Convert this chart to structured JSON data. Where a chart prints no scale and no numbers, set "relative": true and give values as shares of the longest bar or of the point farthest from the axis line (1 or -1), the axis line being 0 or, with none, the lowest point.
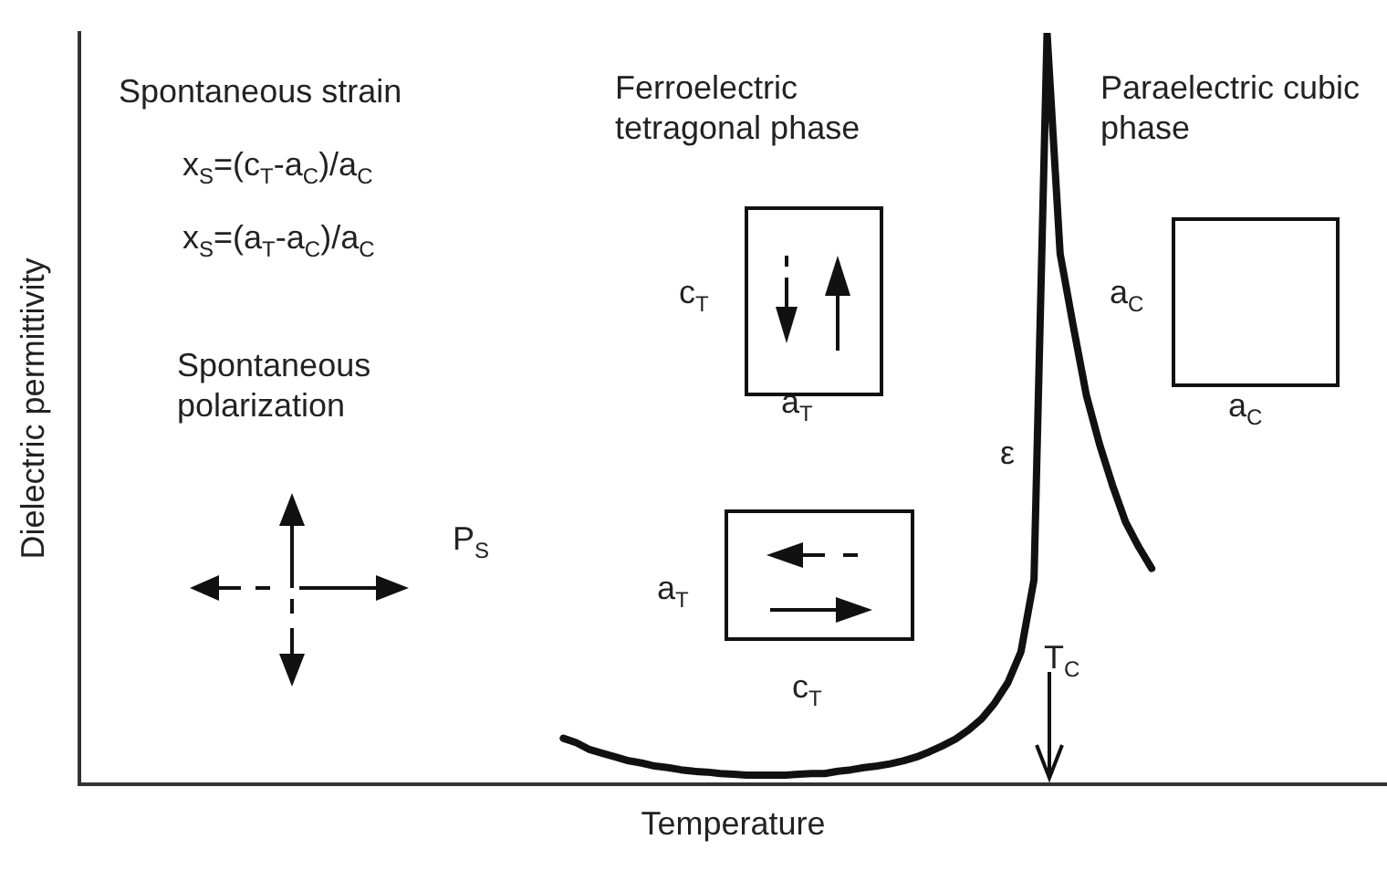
{
  "chart_data": {
    "type": "line",
    "relative": true,
    "xlabel": "Temperature",
    "ylabel": "Dielectric permittivity",
    "color": "#111111",
    "categories": [
      null,
      null,
      null,
      null,
      null,
      null,
      null,
      null,
      null,
      null,
      null,
      null,
      null,
      null,
      null,
      null,
      null,
      null,
      null,
      null,
      null,
      null,
      null,
      null,
      null,
      null,
      null,
      null,
      null,
      null,
      null,
      null,
      null,
      null,
      null,
      null,
      null,
      null,
      null,
      null,
      null,
      null,
      null,
      null,
      null,
      null,
      null,
      null,
      null,
      null,
      null,
      null,
      null,
      null,
      null,
      null,
      null,
      null,
      null,
      null,
      null,
      null,
      null,
      null,
      null,
      null,
      null,
      null,
      null,
      null,
      null,
      null,
      null,
      null,
      null,
      null,
      null,
      null,
      null,
      null,
      null,
      null,
      null,
      null,
      null,
      null,
      null,
      null,
      null,
      null,
      null,
      null,
      null,
      null,
      null,
      null,
      null,
      null,
      null,
      null,
      null
    ],
    "values": [
      null,
      null,
      null,
      null,
      null,
      null,
      null,
      null,
      null,
      null,
      null,
      null,
      null,
      null,
      null,
      null,
      null,
      null,
      null,
      null,
      null,
      null,
      null,
      null,
      null,
      null,
      null,
      null,
      null,
      null,
      null,
      null,
      null,
      null,
      null,
      null,
      null,
      0.061,
      0.055,
      0.046,
      0.041,
      0.036,
      0.031,
      0.028,
      0.024,
      0.022,
      0.019,
      0.017,
      0.016,
      0.014,
      0.013,
      0.012,
      0.012,
      0.012,
      0.012,
      0.013,
      0.014,
      0.014,
      0.017,
      0.019,
      0.022,
      0.024,
      0.027,
      0.031,
      0.036,
      0.043,
      0.051,
      0.06,
      0.072,
      0.087,
      0.108,
      0.135,
      0.176,
      0.272,
      1,
      0.706,
      0.61,
      0.518,
      0.453,
      0.398,
      0.349,
      0.316,
      0.287,
      null,
      null,
      null,
      null,
      null,
      null,
      null,
      null,
      null,
      null,
      null,
      null,
      null,
      null,
      null,
      null,
      null,
      null
    ],
    "annotations": [
      "Spontaneous strain",
      "x$_{S}$=(c$_{T}$-a$_{C}$)/a$_{C}$",
      "x$_{S}$=(a$_{T}$-a$_{C}$)/a$_{C}$",
      "Spontaneous polarization",
      "P$_{S}$",
      "Ferroelectric tetragonal phase",
      "c$_{T}$",
      "a$_{T}$",
      "a$_{T}$",
      "c$_{T}$",
      "Paraelectric cubic phase",
      "a$_{C}$",
      "a$_{C}$",
      "ε",
      "T$_{C}$"
    ]
  }
}
